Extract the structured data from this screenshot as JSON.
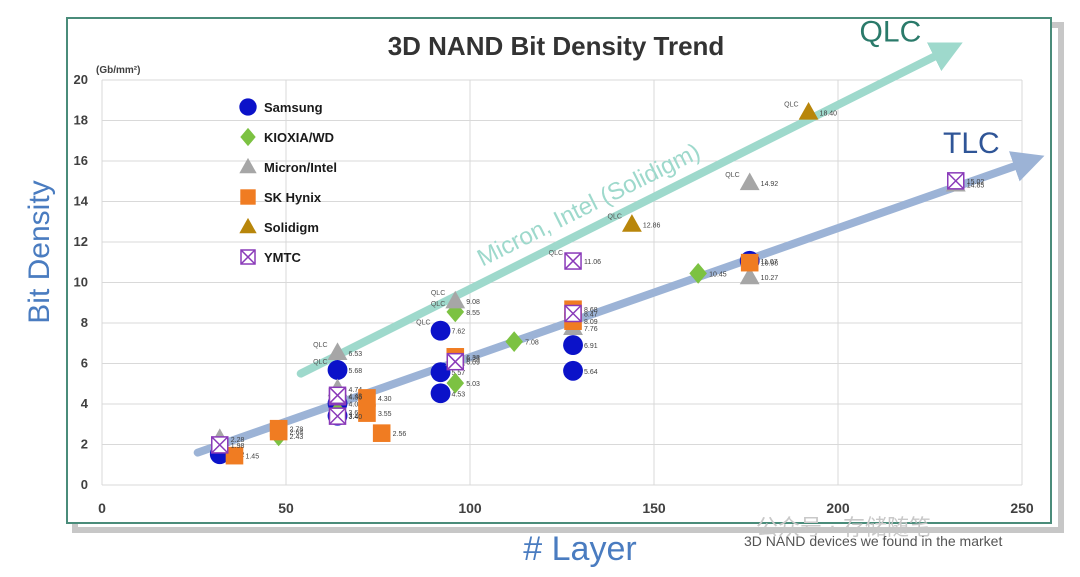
{
  "chart_data": {
    "type": "scatter",
    "title": "3D NAND Bit Density Trend",
    "xlabel": "# Layer",
    "ylabel": "Bit Density",
    "yunit": "(Gb/mm²)",
    "xlim": [
      0,
      250
    ],
    "ylim": [
      0,
      20
    ],
    "xticks": [
      0,
      50,
      100,
      150,
      200,
      250
    ],
    "yticks": [
      0,
      2,
      4,
      6,
      8,
      10,
      12,
      14,
      16,
      18,
      20
    ],
    "grid": true,
    "legend_position": "top-left",
    "series": [
      {
        "name": "Samsung",
        "marker": "circle",
        "color": "#0b12c9",
        "points": [
          {
            "x": 32,
            "y": 1.52,
            "label": "1.52"
          },
          {
            "x": 64,
            "y": 5.68,
            "label": "5.68",
            "tag": "QLC"
          },
          {
            "x": 64,
            "y": 4.03,
            "label": "4.03"
          },
          {
            "x": 64,
            "y": 3.42,
            "label": "3.42"
          },
          {
            "x": 92,
            "y": 7.62,
            "label": "7.62",
            "tag": "QLC"
          },
          {
            "x": 92,
            "y": 5.57,
            "label": "5.57"
          },
          {
            "x": 92,
            "y": 4.53,
            "label": "4.53"
          },
          {
            "x": 128,
            "y": 6.91,
            "label": "6.91"
          },
          {
            "x": 128,
            "y": 5.64,
            "label": "5.64"
          },
          {
            "x": 176,
            "y": 11.07,
            "label": "11.07"
          }
        ]
      },
      {
        "name": "KIOXIA/WD",
        "marker": "diamond",
        "color": "#7cc242",
        "points": [
          {
            "x": 48,
            "y": 2.43,
            "label": "2.43"
          },
          {
            "x": 64,
            "y": 3.61,
            "label": "3.61"
          },
          {
            "x": 96,
            "y": 8.55,
            "label": "8.55",
            "tag": "QLC"
          },
          {
            "x": 96,
            "y": 5.03,
            "label": "5.03"
          },
          {
            "x": 112,
            "y": 7.08,
            "label": "7.08"
          },
          {
            "x": 162,
            "y": 10.45,
            "label": "10.45"
          }
        ]
      },
      {
        "name": "Micron/Intel",
        "marker": "triangle",
        "color": "#a6a6a6",
        "points": [
          {
            "x": 32,
            "y": 2.28,
            "label": "2.28"
          },
          {
            "x": 64,
            "y": 6.53,
            "label": "6.53",
            "tag": "QLC"
          },
          {
            "x": 64,
            "y": 4.74,
            "label": "4.74"
          },
          {
            "x": 96,
            "y": 9.08,
            "label": "9.08",
            "tag": "QLC"
          },
          {
            "x": 96,
            "y": 6.25,
            "label": "6.25"
          },
          {
            "x": 128,
            "y": 7.76,
            "label": "7.76"
          },
          {
            "x": 176,
            "y": 14.92,
            "label": "14.92",
            "tag": "QLC"
          },
          {
            "x": 176,
            "y": 10.27,
            "label": "10.27"
          },
          {
            "x": 232,
            "y": 14.85,
            "label": "14.85"
          }
        ]
      },
      {
        "name": "SK Hynix",
        "marker": "square",
        "color": "#f07c22",
        "points": [
          {
            "x": 36,
            "y": 1.45,
            "label": "1.45"
          },
          {
            "x": 48,
            "y": 2.78,
            "label": "2.78"
          },
          {
            "x": 48,
            "y": 2.64,
            "label": "2.64"
          },
          {
            "x": 72,
            "y": 4.3,
            "label": "4.30"
          },
          {
            "x": 72,
            "y": 3.55,
            "label": "3.55"
          },
          {
            "x": 76,
            "y": 2.56,
            "label": "2.56"
          },
          {
            "x": 96,
            "y": 6.33,
            "label": "6.33"
          },
          {
            "x": 128,
            "y": 8.68,
            "label": "8.68"
          },
          {
            "x": 128,
            "y": 8.09,
            "label": "8.09"
          },
          {
            "x": 176,
            "y": 10.98,
            "label": "10.98"
          }
        ]
      },
      {
        "name": "Solidigm",
        "marker": "triangle",
        "color": "#b8860b",
        "points": [
          {
            "x": 144,
            "y": 12.86,
            "label": "12.86",
            "tag": "QLC"
          },
          {
            "x": 192,
            "y": 18.4,
            "label": "18.40",
            "tag": "QLC"
          }
        ]
      },
      {
        "name": "YMTC",
        "marker": "xsquare",
        "color": "#8a3ab9",
        "points": [
          {
            "x": 32,
            "y": 1.98,
            "label": "1.98"
          },
          {
            "x": 64,
            "y": 4.36,
            "label": "4.36"
          },
          {
            "x": 64,
            "y": 4.43,
            "label": "4.43"
          },
          {
            "x": 64,
            "y": 3.4,
            "label": "3.40"
          },
          {
            "x": 96,
            "y": 6.09,
            "label": "6.09"
          },
          {
            "x": 128,
            "y": 8.47,
            "label": "8.47"
          },
          {
            "x": 128,
            "y": 11.06,
            "label": "11.06",
            "tag": "QLC"
          },
          {
            "x": 232,
            "y": 15.02,
            "label": "15.02"
          }
        ]
      }
    ],
    "trend_lines": [
      {
        "name": "QLC",
        "annotation": "Micron, Intel (Solidigm)",
        "color": "#9ed9cc",
        "label_color": "#2a7a6a",
        "from": [
          54,
          5.5
        ],
        "to": [
          230,
          21.5
        ]
      },
      {
        "name": "TLC",
        "annotation": "",
        "color": "#9cb3d6",
        "label_color": "#2f5597",
        "from": [
          26,
          1.6
        ],
        "to": [
          252,
          16.0
        ]
      }
    ]
  },
  "caption": "3D NAND devices we found in the market",
  "watermark": "公众号 · 存储随笔",
  "colors": {
    "frame_border": "#4a8c7a",
    "grid": "#d9d9d9",
    "axis_text": "#404040",
    "qlc_tag": "#555555"
  }
}
